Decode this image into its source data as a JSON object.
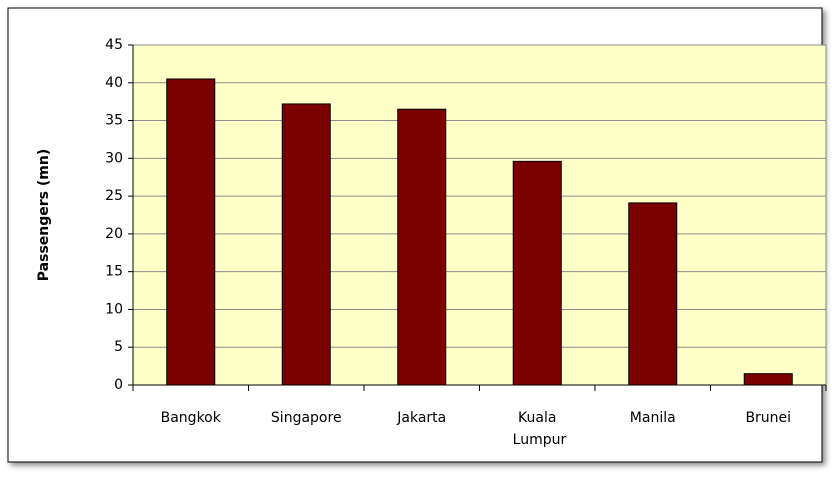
{
  "chart_data": {
    "type": "bar",
    "y_label": "Passengers (mn)",
    "categories": [
      "Bangkok",
      "Singapore",
      "Jakarta",
      "Kuala Lumpur",
      "Manila",
      "Brunei"
    ],
    "values": [
      40.5,
      37.2,
      36.5,
      29.6,
      24.1,
      1.5
    ],
    "color": "#7b0000",
    "ylim": [
      0,
      45
    ],
    "yticks": [
      0,
      5,
      10,
      15,
      20,
      25,
      30,
      35,
      40,
      45
    ],
    "grid": true
  }
}
